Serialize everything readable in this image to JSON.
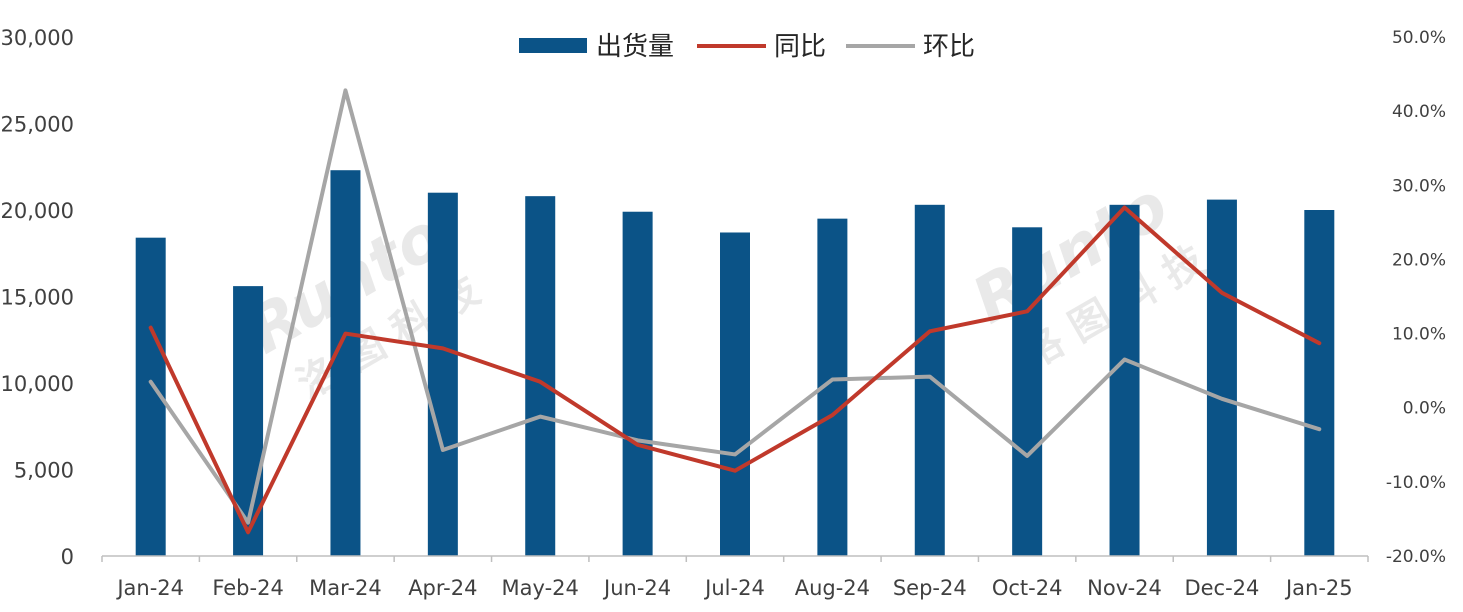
{
  "colors": {
    "shipments": "#0b5387",
    "yoy": "#c0392b",
    "mom": "#a6a6a6",
    "axis": "#bfbfbf",
    "text": "#404040"
  },
  "watermark": {
    "brand": "Runto",
    "cn": "洛 图 科 技"
  },
  "chart_data": {
    "type": "bar",
    "categories": [
      "Jan-24",
      "Feb-24",
      "Mar-24",
      "Apr-24",
      "May-24",
      "Jun-24",
      "Jul-24",
      "Aug-24",
      "Sep-24",
      "Oct-24",
      "Nov-24",
      "Dec-24",
      "Jan-25"
    ],
    "series": [
      {
        "name": "出货量",
        "type": "bar",
        "axis": "left",
        "values": [
          18400,
          15600,
          22300,
          21000,
          20800,
          19900,
          18700,
          19500,
          20300,
          19000,
          20300,
          20600,
          20000
        ]
      },
      {
        "name": "同比",
        "type": "line",
        "axis": "right",
        "values": [
          10.8,
          -16.8,
          10.0,
          8.0,
          3.5,
          -5.0,
          -8.5,
          -1.0,
          10.3,
          13.0,
          27.0,
          15.5,
          8.7
        ]
      },
      {
        "name": "环比",
        "type": "line",
        "axis": "right",
        "values": [
          3.5,
          -15.5,
          42.8,
          -5.7,
          -1.2,
          -4.4,
          -6.3,
          3.8,
          4.2,
          -6.5,
          6.5,
          1.2,
          -2.9
        ]
      }
    ],
    "yaxis_left": {
      "range": [
        0,
        30000
      ],
      "ticks": [
        "0",
        "5,000",
        "10,000",
        "15,000",
        "20,000",
        "25,000",
        "30,000"
      ]
    },
    "yaxis_right": {
      "range": [
        -20,
        50
      ],
      "ticks": [
        "-20.0%",
        "-10.0%",
        "0.0%",
        "10.0%",
        "20.0%",
        "30.0%",
        "40.0%",
        "50.0%"
      ]
    },
    "legend": {
      "position": "top-center",
      "items": [
        "出货量",
        "同比",
        "环比"
      ]
    },
    "grid": false
  }
}
